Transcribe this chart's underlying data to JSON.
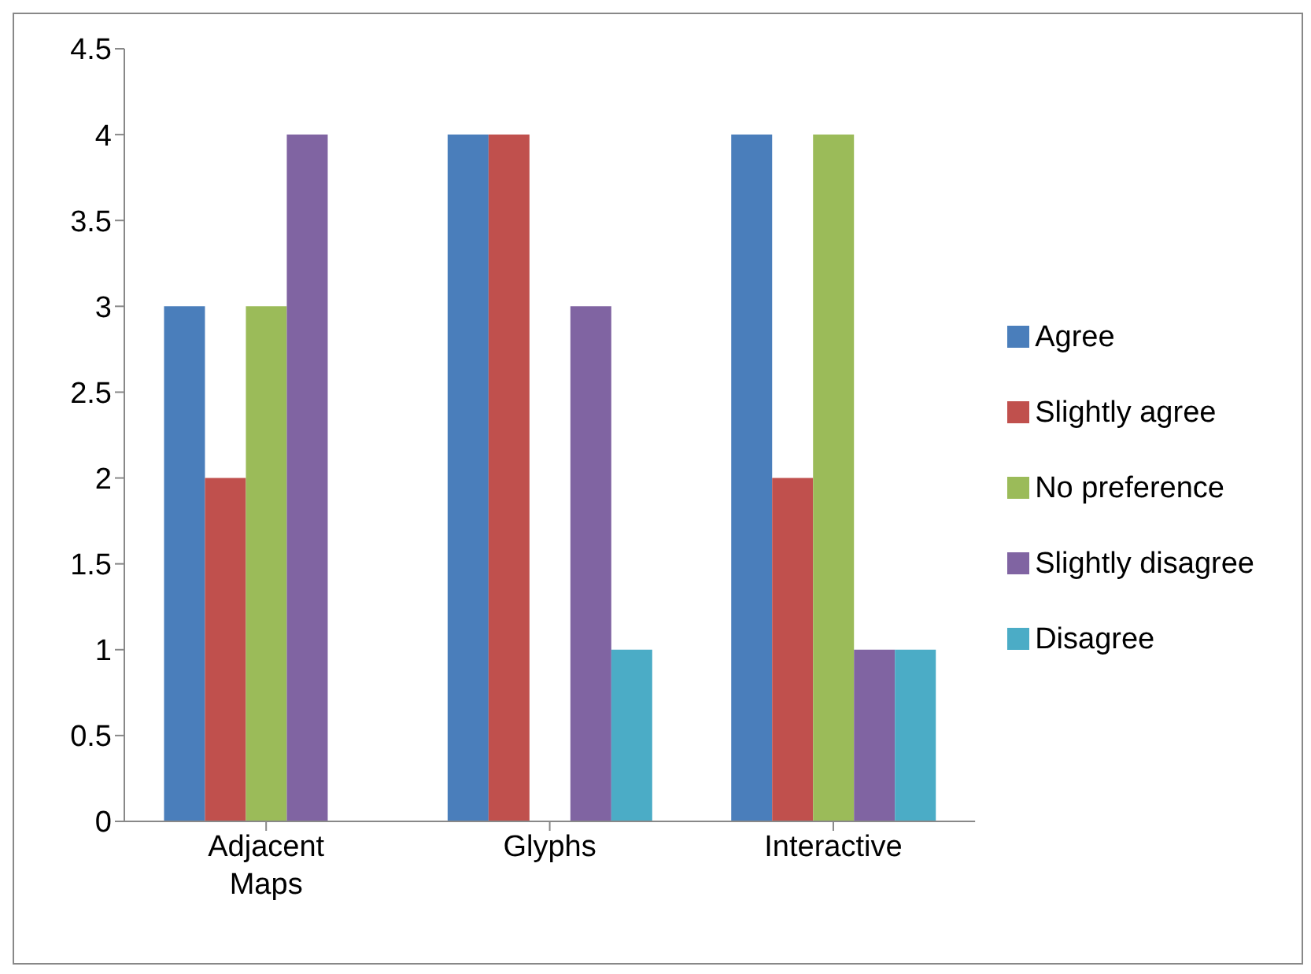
{
  "chart_data": {
    "type": "bar",
    "categories": [
      "Adjacent Maps",
      "Glyphs",
      "Interactive"
    ],
    "series": [
      {
        "name": "Agree",
        "color": "#4a7ebb",
        "values": [
          3,
          4,
          4
        ]
      },
      {
        "name": "Slightly agree",
        "color": "#c0504d",
        "values": [
          2,
          4,
          2
        ]
      },
      {
        "name": "No preference",
        "color": "#9bbb59",
        "values": [
          3,
          0,
          4
        ]
      },
      {
        "name": "Slightly disagree",
        "color": "#8064a2",
        "values": [
          4,
          3,
          1
        ]
      },
      {
        "name": "Disagree",
        "color": "#4bacc6",
        "values": [
          0,
          1,
          1
        ]
      }
    ],
    "ylim": [
      0,
      4.5
    ],
    "yticks": [
      0,
      0.5,
      1,
      1.5,
      2,
      2.5,
      3,
      3.5,
      4,
      4.5
    ],
    "legend": "right"
  }
}
